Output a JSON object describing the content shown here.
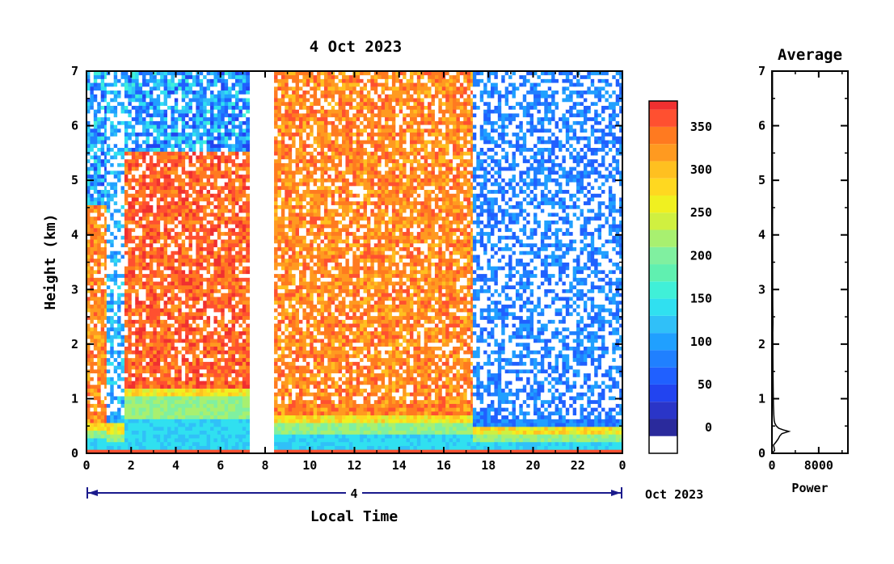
{
  "chart_data": [
    {
      "type": "heatmap",
      "title": "4 Oct 2023",
      "xlabel": "Local Time",
      "ylabel": "Height (km)",
      "x_ticks": [
        "0",
        "2",
        "4",
        "6",
        "8",
        "10",
        "12",
        "14",
        "16",
        "18",
        "20",
        "22",
        "0"
      ],
      "y_ticks": [
        "0",
        "1",
        "2",
        "3",
        "4",
        "5",
        "6",
        "7"
      ],
      "xlim": [
        0,
        24
      ],
      "ylim": [
        0,
        7
      ],
      "date_axis": {
        "day_label": "4",
        "month_year_label": "Oct 2023"
      },
      "data_gaps": [
        [
          7.3,
          8.4
        ]
      ],
      "segments": [
        {
          "x": [
            0,
            0.9
          ],
          "level": 360,
          "top_km": 4.5,
          "aerosol_km": 0.4
        },
        {
          "x": [
            0.9,
            1.7
          ],
          "level": 140,
          "top_km": 7.0,
          "aerosol_km": 0.35
        },
        {
          "x": [
            1.7,
            7.3
          ],
          "level": 380,
          "top_km": 5.5,
          "aerosol_km": 1.0
        },
        {
          "x": [
            8.4,
            17.3
          ],
          "level": 360,
          "top_km": 7.0,
          "aerosol_km": 0.55
        },
        {
          "x": [
            17.3,
            24
          ],
          "level": 110,
          "top_km": 7.0,
          "aerosol_km": 0.3
        }
      ],
      "colorbar": {
        "ticks": [
          0,
          50,
          100,
          150,
          200,
          250,
          300,
          350
        ],
        "range": [
          -30,
          380
        ],
        "levels": [
          -30,
          -10,
          10,
          30,
          50,
          70,
          90,
          110,
          130,
          150,
          170,
          190,
          210,
          230,
          250,
          270,
          290,
          310,
          330,
          350,
          370
        ],
        "colors": [
          "#ffffff",
          "#2a2a9c",
          "#2a35c8",
          "#2244f0",
          "#2060ff",
          "#2080ff",
          "#20a0ff",
          "#30c0f8",
          "#30e0f0",
          "#40f0d8",
          "#60f0b0",
          "#80f0a0",
          "#a8f070",
          "#d0f040",
          "#f0f020",
          "#ffd820",
          "#ffc020",
          "#ff9a20",
          "#ff7a20",
          "#ff5030",
          "#f03030"
        ]
      }
    },
    {
      "type": "line",
      "title": "Average",
      "xlabel": "Power",
      "x_ticks": [
        "0",
        "8000"
      ],
      "y_ticks": [
        "0",
        "1",
        "2",
        "3",
        "4",
        "5",
        "6",
        "7"
      ],
      "xlim": [
        0,
        13000
      ],
      "ylim": [
        0,
        7
      ],
      "series": [
        {
          "x": [
            0,
            450,
            380,
            260,
            650,
            1050,
            1350,
            1700,
            2300,
            2900,
            1900,
            1150,
            750,
            500,
            380,
            320,
            250,
            220,
            200,
            180,
            160,
            160,
            150,
            180,
            140,
            130,
            120,
            110,
            100,
            110,
            100,
            90,
            100,
            95,
            90
          ],
          "y": [
            0,
            0.05,
            0.1,
            0.15,
            0.2,
            0.26,
            0.32,
            0.36,
            0.38,
            0.4,
            0.43,
            0.46,
            0.5,
            0.55,
            0.6,
            0.7,
            0.9,
            1.1,
            1.3,
            1.5,
            1.8,
            2.0,
            2.2,
            2.4,
            2.7,
            3.0,
            3.4,
            3.8,
            4.2,
            4.6,
            5.0,
            5.5,
            6.0,
            6.5,
            7.0
          ]
        }
      ]
    }
  ]
}
